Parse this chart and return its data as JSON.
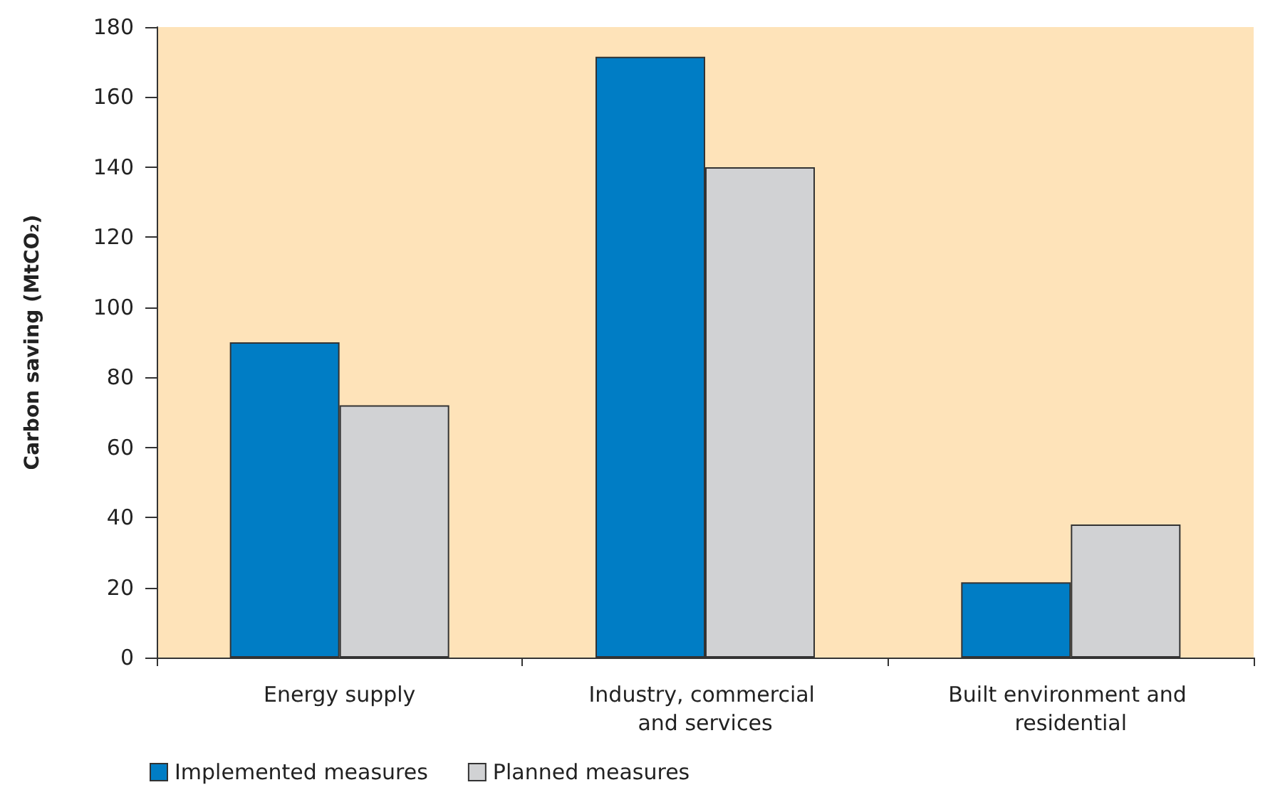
{
  "chart_data": {
    "type": "bar",
    "ylabel": "Carbon saving (MtCO₂)",
    "categories": [
      "Energy supply",
      "Industry, commercial and services",
      "Built environment and residential"
    ],
    "series": [
      {
        "name": "Implemented measures",
        "color": "#007dc5",
        "values": [
          90,
          171.5,
          21.5
        ]
      },
      {
        "name": "Planned measures",
        "color": "#d1d2d4",
        "values": [
          72,
          140,
          38
        ]
      }
    ],
    "ylim": [
      0,
      180
    ],
    "yticks": [
      0,
      20,
      40,
      60,
      80,
      100,
      120,
      140,
      160,
      180
    ],
    "grid": false,
    "legend": "bottom left"
  }
}
